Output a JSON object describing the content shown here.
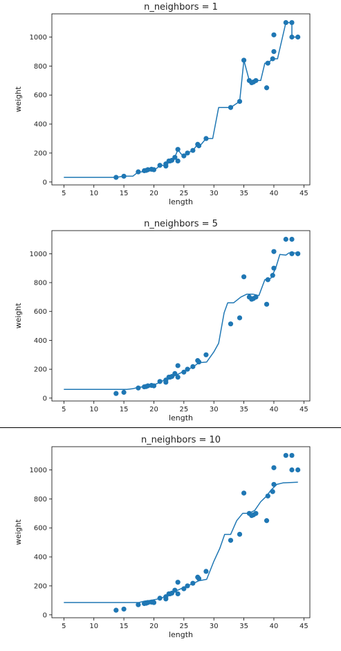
{
  "colors": {
    "series": "#1f77b4",
    "axis": "#000000",
    "divider": "#000000"
  },
  "chart_data": [
    {
      "type": "scatter",
      "title": "n_neighbors = 1",
      "xlabel": "length",
      "ylabel": "weight",
      "xlim": [
        3,
        46
      ],
      "ylim": [
        -20,
        1160
      ],
      "grid": false,
      "x_ticks": [
        5,
        10,
        15,
        20,
        25,
        30,
        35,
        40,
        45
      ],
      "y_ticks": [
        0,
        200,
        400,
        600,
        800,
        1000
      ],
      "series": [
        {
          "kind": "scatter",
          "points": [
            [
              13.7,
              32
            ],
            [
              15.0,
              40
            ],
            [
              17.4,
              70
            ],
            [
              18.4,
              78
            ],
            [
              18.7,
              80
            ],
            [
              19.0,
              85
            ],
            [
              19.6,
              88
            ],
            [
              20.0,
              85
            ],
            [
              21.0,
              115
            ],
            [
              22.0,
              125
            ],
            [
              22.0,
              110
            ],
            [
              22.5,
              145
            ],
            [
              22.7,
              145
            ],
            [
              23.0,
              150
            ],
            [
              23.5,
              170
            ],
            [
              24.0,
              145
            ],
            [
              24.0,
              225
            ],
            [
              25.0,
              180
            ],
            [
              25.6,
              200
            ],
            [
              26.5,
              218
            ],
            [
              27.3,
              260
            ],
            [
              27.5,
              250
            ],
            [
              28.7,
              300
            ],
            [
              32.8,
              514
            ],
            [
              34.3,
              556
            ],
            [
              35.0,
              840
            ],
            [
              35.9,
              700
            ],
            [
              36.3,
              685
            ],
            [
              36.6,
              690
            ],
            [
              37.0,
              700
            ],
            [
              38.8,
              650
            ],
            [
              39.0,
              820
            ],
            [
              39.8,
              850
            ],
            [
              40.0,
              900
            ],
            [
              40.0,
              1015
            ],
            [
              42.0,
              1100
            ],
            [
              43.0,
              1100
            ],
            [
              43.0,
              1000
            ],
            [
              44.0,
              1000
            ]
          ]
        },
        {
          "kind": "line",
          "points": [
            [
              5,
              32
            ],
            [
              13.7,
              32
            ],
            [
              15.0,
              40
            ],
            [
              16.5,
              40
            ],
            [
              17.4,
              70
            ],
            [
              18.0,
              70
            ],
            [
              18.4,
              78
            ],
            [
              18.7,
              80
            ],
            [
              19.0,
              85
            ],
            [
              19.6,
              88
            ],
            [
              20.0,
              85
            ],
            [
              20.5,
              95
            ],
            [
              21.0,
              115
            ],
            [
              21.8,
              115
            ],
            [
              22.0,
              125
            ],
            [
              22.5,
              145
            ],
            [
              23.0,
              150
            ],
            [
              23.5,
              170
            ],
            [
              24.0,
              225
            ],
            [
              24.5,
              195
            ],
            [
              25.0,
              180
            ],
            [
              25.6,
              200
            ],
            [
              26.5,
              218
            ],
            [
              27.3,
              260
            ],
            [
              27.8,
              255
            ],
            [
              28.7,
              300
            ],
            [
              29.8,
              300
            ],
            [
              30.8,
              514
            ],
            [
              32.8,
              514
            ],
            [
              34.3,
              556
            ],
            [
              35.0,
              840
            ],
            [
              35.9,
              700
            ],
            [
              36.3,
              685
            ],
            [
              36.6,
              690
            ],
            [
              37.0,
              700
            ],
            [
              37.8,
              700
            ],
            [
              38.5,
              820
            ],
            [
              39.0,
              820
            ],
            [
              39.8,
              850
            ],
            [
              40.6,
              850
            ],
            [
              42.0,
              1100
            ],
            [
              43.0,
              1100
            ],
            [
              43.0,
              1000
            ],
            [
              44.0,
              1000
            ]
          ]
        }
      ]
    },
    {
      "type": "scatter",
      "title": "n_neighbors = 5",
      "xlabel": "length",
      "ylabel": "weight",
      "xlim": [
        3,
        46
      ],
      "ylim": [
        -20,
        1160
      ],
      "grid": false,
      "x_ticks": [
        5,
        10,
        15,
        20,
        25,
        30,
        35,
        40,
        45
      ],
      "y_ticks": [
        0,
        200,
        400,
        600,
        800,
        1000
      ],
      "series": [
        {
          "kind": "scatter",
          "points": [
            [
              13.7,
              32
            ],
            [
              15.0,
              40
            ],
            [
              17.4,
              70
            ],
            [
              18.4,
              78
            ],
            [
              18.7,
              80
            ],
            [
              19.0,
              85
            ],
            [
              19.6,
              88
            ],
            [
              20.0,
              85
            ],
            [
              21.0,
              115
            ],
            [
              22.0,
              125
            ],
            [
              22.0,
              110
            ],
            [
              22.5,
              145
            ],
            [
              22.7,
              145
            ],
            [
              23.0,
              150
            ],
            [
              23.5,
              170
            ],
            [
              24.0,
              145
            ],
            [
              24.0,
              225
            ],
            [
              25.0,
              180
            ],
            [
              25.6,
              200
            ],
            [
              26.5,
              218
            ],
            [
              27.3,
              260
            ],
            [
              27.5,
              250
            ],
            [
              28.7,
              300
            ],
            [
              32.8,
              514
            ],
            [
              34.3,
              556
            ],
            [
              35.0,
              840
            ],
            [
              35.9,
              700
            ],
            [
              36.3,
              685
            ],
            [
              36.6,
              690
            ],
            [
              37.0,
              700
            ],
            [
              38.8,
              650
            ],
            [
              39.0,
              820
            ],
            [
              39.8,
              850
            ],
            [
              40.0,
              900
            ],
            [
              40.0,
              1015
            ],
            [
              42.0,
              1100
            ],
            [
              43.0,
              1100
            ],
            [
              43.0,
              1000
            ],
            [
              44.0,
              1000
            ]
          ]
        },
        {
          "kind": "line",
          "points": [
            [
              5,
              60
            ],
            [
              15.5,
              60
            ],
            [
              16.5,
              65
            ],
            [
              17.4,
              75
            ],
            [
              18.5,
              80
            ],
            [
              19.5,
              85
            ],
            [
              20.5,
              100
            ],
            [
              21.5,
              120
            ],
            [
              22.5,
              135
            ],
            [
              23.5,
              155
            ],
            [
              24.5,
              175
            ],
            [
              25.5,
              195
            ],
            [
              26.5,
              215
            ],
            [
              27.5,
              245
            ],
            [
              28.8,
              250
            ],
            [
              30.0,
              320
            ],
            [
              30.8,
              380
            ],
            [
              31.7,
              590
            ],
            [
              32.3,
              660
            ],
            [
              33.3,
              660
            ],
            [
              34.5,
              700
            ],
            [
              35.5,
              720
            ],
            [
              36.5,
              720
            ],
            [
              37.5,
              710
            ],
            [
              38.5,
              820
            ],
            [
              39.5,
              830
            ],
            [
              40.3,
              900
            ],
            [
              41.0,
              995
            ],
            [
              42.0,
              990
            ],
            [
              42.5,
              1005
            ],
            [
              43.5,
              1005
            ],
            [
              44.0,
              1005
            ]
          ]
        }
      ]
    },
    {
      "type": "scatter",
      "title": "n_neighbors = 10",
      "xlabel": "length",
      "ylabel": "weight",
      "xlim": [
        3,
        46
      ],
      "ylim": [
        -20,
        1160
      ],
      "grid": false,
      "x_ticks": [
        5,
        10,
        15,
        20,
        25,
        30,
        35,
        40,
        45
      ],
      "y_ticks": [
        0,
        200,
        400,
        600,
        800,
        1000
      ],
      "series": [
        {
          "kind": "scatter",
          "points": [
            [
              13.7,
              32
            ],
            [
              15.0,
              40
            ],
            [
              17.4,
              70
            ],
            [
              18.4,
              78
            ],
            [
              18.7,
              80
            ],
            [
              19.0,
              85
            ],
            [
              19.6,
              88
            ],
            [
              20.0,
              85
            ],
            [
              21.0,
              115
            ],
            [
              22.0,
              125
            ],
            [
              22.0,
              110
            ],
            [
              22.5,
              145
            ],
            [
              22.7,
              145
            ],
            [
              23.0,
              150
            ],
            [
              23.5,
              170
            ],
            [
              24.0,
              145
            ],
            [
              24.0,
              225
            ],
            [
              25.0,
              180
            ],
            [
              25.6,
              200
            ],
            [
              26.5,
              218
            ],
            [
              27.3,
              260
            ],
            [
              27.5,
              250
            ],
            [
              28.7,
              300
            ],
            [
              32.8,
              514
            ],
            [
              34.3,
              556
            ],
            [
              35.0,
              840
            ],
            [
              35.9,
              700
            ],
            [
              36.3,
              685
            ],
            [
              36.6,
              690
            ],
            [
              37.0,
              700
            ],
            [
              38.8,
              650
            ],
            [
              39.0,
              820
            ],
            [
              39.8,
              850
            ],
            [
              40.0,
              900
            ],
            [
              40.0,
              1015
            ],
            [
              42.0,
              1100
            ],
            [
              43.0,
              1100
            ],
            [
              43.0,
              1000
            ],
            [
              44.0,
              1000
            ]
          ]
        },
        {
          "kind": "line",
          "points": [
            [
              5,
              85
            ],
            [
              17.5,
              85
            ],
            [
              18.5,
              95
            ],
            [
              19.5,
              100
            ],
            [
              20.5,
              108
            ],
            [
              21.5,
              120
            ],
            [
              22.5,
              140
            ],
            [
              23.5,
              160
            ],
            [
              24.5,
              180
            ],
            [
              25.5,
              200
            ],
            [
              26.5,
              215
            ],
            [
              27.5,
              235
            ],
            [
              28.8,
              245
            ],
            [
              30.0,
              370
            ],
            [
              31.0,
              460
            ],
            [
              31.8,
              555
            ],
            [
              32.8,
              555
            ],
            [
              33.8,
              650
            ],
            [
              34.8,
              700
            ],
            [
              35.8,
              700
            ],
            [
              36.8,
              720
            ],
            [
              37.8,
              780
            ],
            [
              38.8,
              820
            ],
            [
              39.5,
              860
            ],
            [
              40.5,
              900
            ],
            [
              41.5,
              910
            ],
            [
              44.0,
              915
            ]
          ]
        }
      ]
    }
  ]
}
